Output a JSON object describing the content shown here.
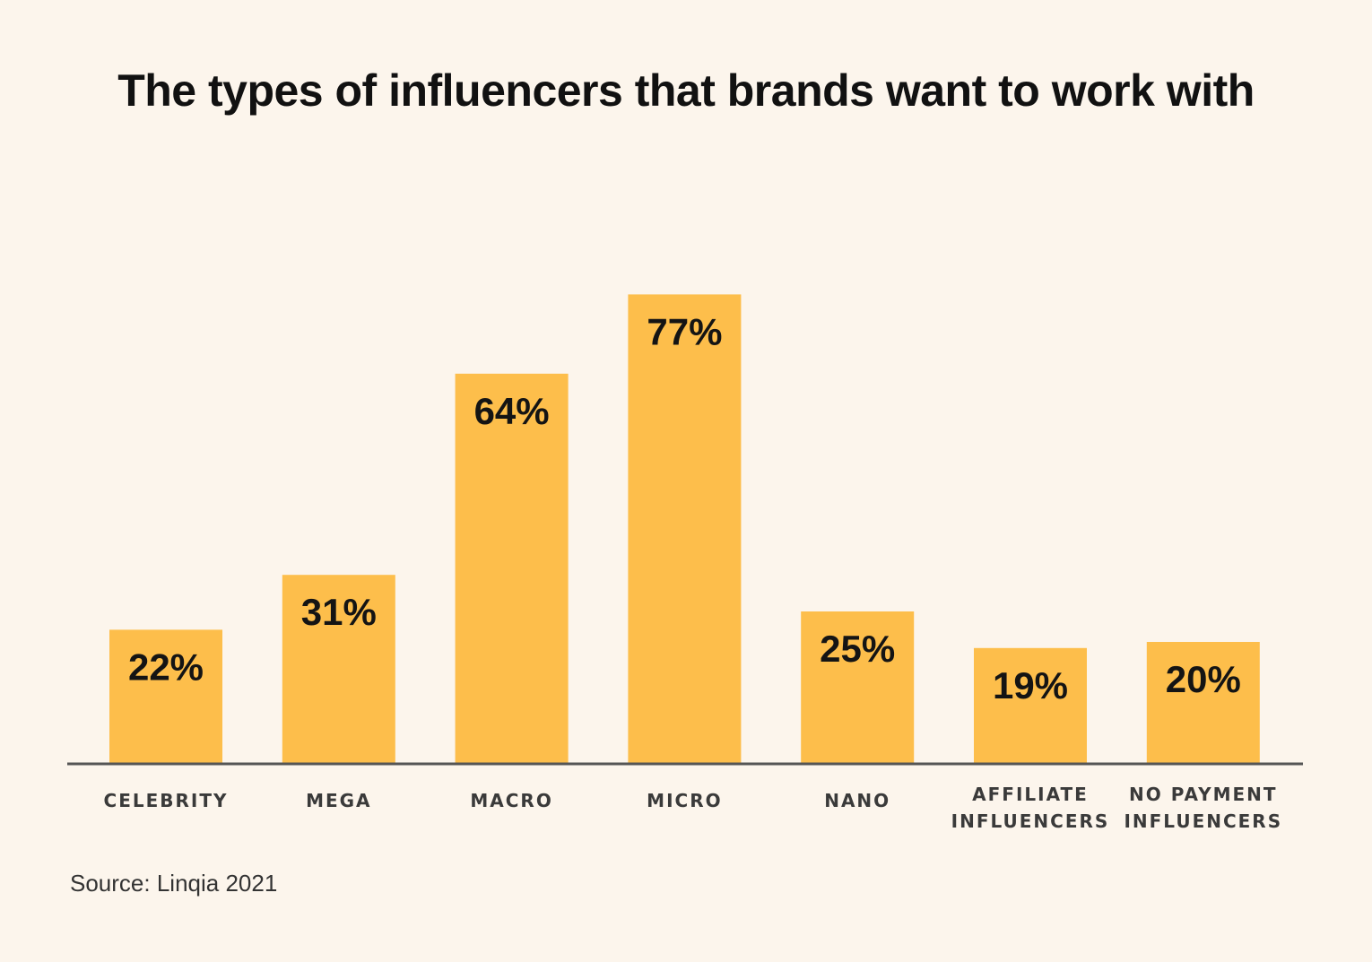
{
  "chart_data": {
    "type": "bar",
    "title": "The types of influencers that brands want to work with",
    "categories": [
      [
        "CELEBRITY"
      ],
      [
        "MEGA"
      ],
      [
        "MACRO"
      ],
      [
        "MICRO"
      ],
      [
        "NANO"
      ],
      [
        "AFFILIATE",
        "INFLUENCERS"
      ],
      [
        "NO PAYMENT",
        "INFLUENCERS"
      ]
    ],
    "values": [
      22,
      31,
      64,
      77,
      25,
      19,
      20
    ],
    "value_labels": [
      "22%",
      "31%",
      "64%",
      "77%",
      "25%",
      "19%",
      "20%"
    ],
    "unit": "%",
    "xlabel": "",
    "ylabel": "",
    "grid": false,
    "legend": "none",
    "bar_color": "#fdbe4b",
    "axis_color": "#555555",
    "source": "Source: Linqia 2021"
  }
}
